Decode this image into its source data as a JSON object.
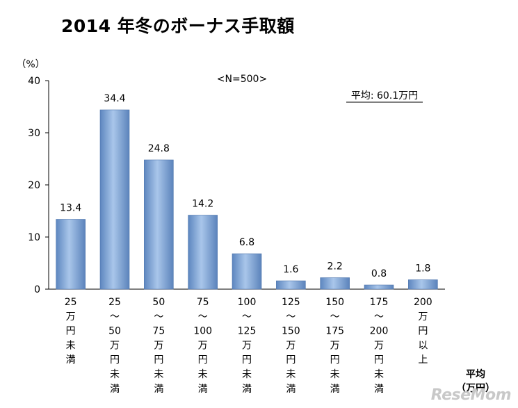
{
  "chart_data": {
    "type": "bar",
    "title": "2014 年冬のボーナス手取額",
    "annotation": "<N=500>",
    "average_label": "平均: 60.1万円",
    "ylabel": "（%）",
    "xlabel": "平均\n（万円）",
    "ylim": [
      0,
      40
    ],
    "yticks": [
      0,
      10,
      20,
      30,
      40
    ],
    "grid": false,
    "bar_color": "#7fa6d6",
    "categories": [
      "25\n万\n円\n未\n満",
      "25\n〜\n50\n万\n円\n未\n満",
      "50\n〜\n75\n万\n円\n未\n満",
      "75\n〜\n100\n万\n円\n未\n満",
      "100\n〜\n125\n万\n円\n未\n満",
      "125\n〜\n150\n万\n円\n未\n満",
      "150\n〜\n175\n万\n円\n未\n満",
      "175\n〜\n200\n万\n円\n未\n満",
      "200\n万\n円\n以\n上"
    ],
    "values": [
      13.4,
      34.4,
      24.8,
      14.2,
      6.8,
      1.6,
      2.2,
      0.8,
      1.8
    ],
    "value_labels": [
      "13.4",
      "34.4",
      "24.8",
      "14.2",
      "6.8",
      "1.6",
      "2.2",
      "0.8",
      "1.8"
    ]
  },
  "logo_text": "ReseMom"
}
